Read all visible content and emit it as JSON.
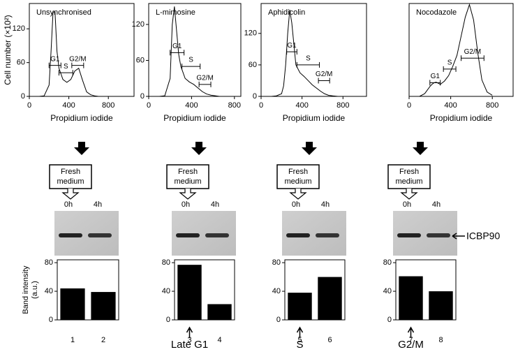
{
  "chart_data": [
    {
      "type": "line",
      "title": "Unsynchronised",
      "xlabel": "Propidium iodide",
      "ylabel": "Cell number (×10²)",
      "x": [
        100,
        150,
        200,
        220,
        240,
        260,
        280,
        300,
        340,
        380,
        420,
        460,
        500,
        540,
        580,
        620,
        660,
        700,
        750,
        800
      ],
      "values": [
        0,
        1,
        20,
        80,
        150,
        150,
        80,
        50,
        30,
        25,
        30,
        45,
        50,
        28,
        8,
        3,
        1,
        0,
        0,
        0
      ],
      "xlim": [
        0,
        1060
      ],
      "ylim": [
        0,
        165
      ],
      "xticks": [
        0,
        400,
        800
      ],
      "yticks": [
        0,
        60,
        120
      ],
      "gates": [
        {
          "label": "G1",
          "range": [
            200,
            320
          ],
          "y": 55
        },
        {
          "label": "S",
          "range": [
            300,
            440
          ],
          "y": 42
        },
        {
          "label": "G2/M",
          "range": [
            430,
            550
          ],
          "y": 55
        }
      ]
    },
    {
      "type": "line",
      "title": "L-mimosine",
      "xlabel": "Propidium iodide",
      "x": [
        100,
        150,
        200,
        220,
        240,
        260,
        280,
        300,
        340,
        380,
        420,
        460,
        500,
        540,
        580,
        620,
        660,
        700,
        750,
        800
      ],
      "values": [
        0,
        1,
        30,
        120,
        150,
        110,
        70,
        50,
        30,
        24,
        20,
        14,
        8,
        4,
        2,
        1,
        0,
        0,
        0,
        0
      ],
      "xlim": [
        0,
        860
      ],
      "ylim": [
        0,
        155
      ],
      "xticks": [
        0,
        400,
        800
      ],
      "yticks": [
        0,
        60,
        120
      ],
      "gates": [
        {
          "label": "G1",
          "range": [
            200,
            330
          ],
          "y": 73
        },
        {
          "label": "S",
          "range": [
            310,
            480
          ],
          "y": 50
        },
        {
          "label": "G2/M",
          "range": [
            470,
            580
          ],
          "y": 20
        }
      ]
    },
    {
      "type": "line",
      "title": "Aphidicolin",
      "xlabel": "Propidium iodide",
      "x": [
        100,
        150,
        200,
        220,
        240,
        260,
        280,
        300,
        340,
        380,
        420,
        460,
        500,
        540,
        580,
        620,
        660,
        700,
        750,
        800
      ],
      "values": [
        0,
        1,
        5,
        20,
        60,
        120,
        165,
        140,
        60,
        45,
        38,
        30,
        22,
        16,
        10,
        5,
        2,
        1,
        0,
        0
      ],
      "xlim": [
        0,
        1030
      ],
      "ylim": [
        0,
        177
      ],
      "xticks": [
        0,
        400,
        800
      ],
      "yticks": [
        0,
        60,
        120
      ],
      "gates": [
        {
          "label": "G1",
          "range": [
            250,
            350
          ],
          "y": 85
        },
        {
          "label": "S",
          "range": [
            350,
            570
          ],
          "y": 60
        },
        {
          "label": "G2/M",
          "range": [
            560,
            670
          ],
          "y": 30
        }
      ]
    },
    {
      "type": "line",
      "title": "Nocodazole",
      "xlabel": "Propidium iodide",
      "x": [
        100,
        150,
        200,
        220,
        240,
        260,
        280,
        300,
        340,
        380,
        420,
        460,
        500,
        540,
        580,
        620,
        660,
        700,
        750,
        800
      ],
      "values": [
        0,
        5,
        18,
        22,
        25,
        26,
        24,
        22,
        28,
        38,
        55,
        75,
        110,
        145,
        168,
        140,
        80,
        30,
        8,
        2
      ],
      "xlim": [
        0,
        1000
      ],
      "ylim": [
        0,
        170
      ],
      "xticks": [
        0,
        400,
        800
      ],
      "yticks": [],
      "gates": [
        {
          "label": "G1",
          "range": [
            200,
            300
          ],
          "y": 25
        },
        {
          "label": "S",
          "range": [
            330,
            450
          ],
          "y": 50
        },
        {
          "label": "G2/M",
          "range": [
            500,
            720
          ],
          "y": 70
        }
      ]
    },
    {
      "type": "bar",
      "ylabel": [
        "Band intensity",
        "(a.u.)"
      ],
      "categories": [
        "1",
        "2"
      ],
      "values": [
        44,
        39
      ],
      "color": "#000000",
      "ylim": [
        0,
        84
      ],
      "yticks": [
        0,
        40,
        80
      ]
    },
    {
      "type": "bar",
      "categories": [
        "3",
        "4"
      ],
      "values": [
        77,
        22
      ],
      "color": "#000000",
      "ylim": [
        0,
        84
      ],
      "yticks": [
        0,
        40,
        80
      ],
      "annotation": "Late G1"
    },
    {
      "type": "bar",
      "categories": [
        "5",
        "6"
      ],
      "values": [
        38,
        60
      ],
      "color": "#000000",
      "ylim": [
        0,
        84
      ],
      "yticks": [
        0,
        40,
        80
      ],
      "annotation": "S"
    },
    {
      "type": "bar",
      "categories": [
        "7",
        "8"
      ],
      "values": [
        61,
        40
      ],
      "color": "#000000",
      "ylim": [
        0,
        84
      ],
      "yticks": [
        0,
        40,
        80
      ],
      "annotation": "G2/M"
    }
  ],
  "figure": {
    "step_label_lines": [
      "Fresh",
      "medium"
    ],
    "times": [
      "0h",
      "4h"
    ],
    "protein": "ICBP90"
  }
}
